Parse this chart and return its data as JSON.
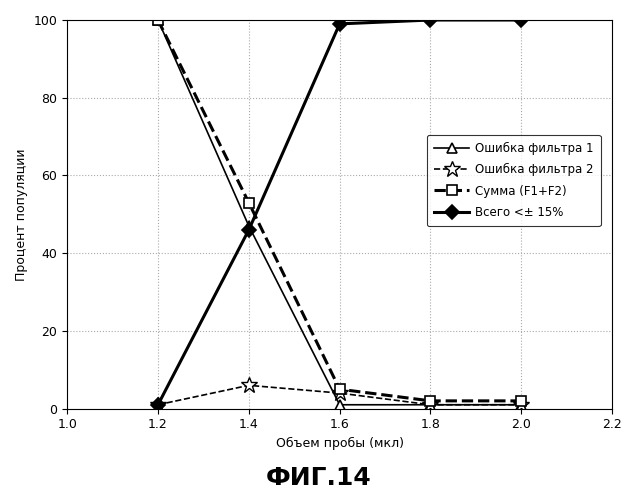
{
  "title": "ФИГ.14",
  "xlabel": "Объем пробы (мкл)",
  "ylabel": "Процент популяции",
  "xlim": [
    1.0,
    2.2
  ],
  "ylim": [
    0,
    100
  ],
  "xticks": [
    1.0,
    1.2,
    1.4,
    1.6,
    1.8,
    2.0,
    2.2
  ],
  "yticks": [
    0,
    20,
    40,
    60,
    80,
    100
  ],
  "series": [
    {
      "label": "Ошибка фильтра 1",
      "x": [
        1.2,
        1.4,
        1.6,
        1.8,
        2.0
      ],
      "y": [
        100,
        47,
        1,
        1,
        1
      ],
      "linestyle": "-",
      "linewidth": 1.2,
      "color": "black",
      "marker": "^",
      "markersize": 7,
      "markerfacecolor": "white",
      "markeredgecolor": "black",
      "markeredgewidth": 1.2
    },
    {
      "label": "Ошибка фильтра 2",
      "x": [
        1.2,
        1.4,
        1.6,
        1.8,
        2.0
      ],
      "y": [
        1,
        6,
        4,
        1,
        1
      ],
      "linestyle": "--",
      "linewidth": 1.2,
      "color": "black",
      "marker": "*",
      "markersize": 12,
      "markerfacecolor": "white",
      "markeredgecolor": "black",
      "markeredgewidth": 1.0
    },
    {
      "label": "Сумма (F1+F2)",
      "x": [
        1.2,
        1.4,
        1.6,
        1.8,
        2.0
      ],
      "y": [
        100,
        53,
        5,
        2,
        2
      ],
      "linestyle": "--",
      "linewidth": 2.2,
      "color": "black",
      "marker": "s",
      "markersize": 7,
      "markerfacecolor": "white",
      "markeredgecolor": "black",
      "markeredgewidth": 1.2
    },
    {
      "label": "Всего <± 15%",
      "x": [
        1.2,
        1.4,
        1.6,
        1.8,
        2.0
      ],
      "y": [
        1,
        46,
        99,
        100,
        100
      ],
      "linestyle": "-",
      "linewidth": 2.2,
      "color": "black",
      "marker": "D",
      "markersize": 7,
      "markerfacecolor": "black",
      "markeredgecolor": "black",
      "markeredgewidth": 1.2
    }
  ],
  "grid": true,
  "grid_linestyle": ":",
  "grid_color": "#aaaaaa",
  "background_color": "white"
}
